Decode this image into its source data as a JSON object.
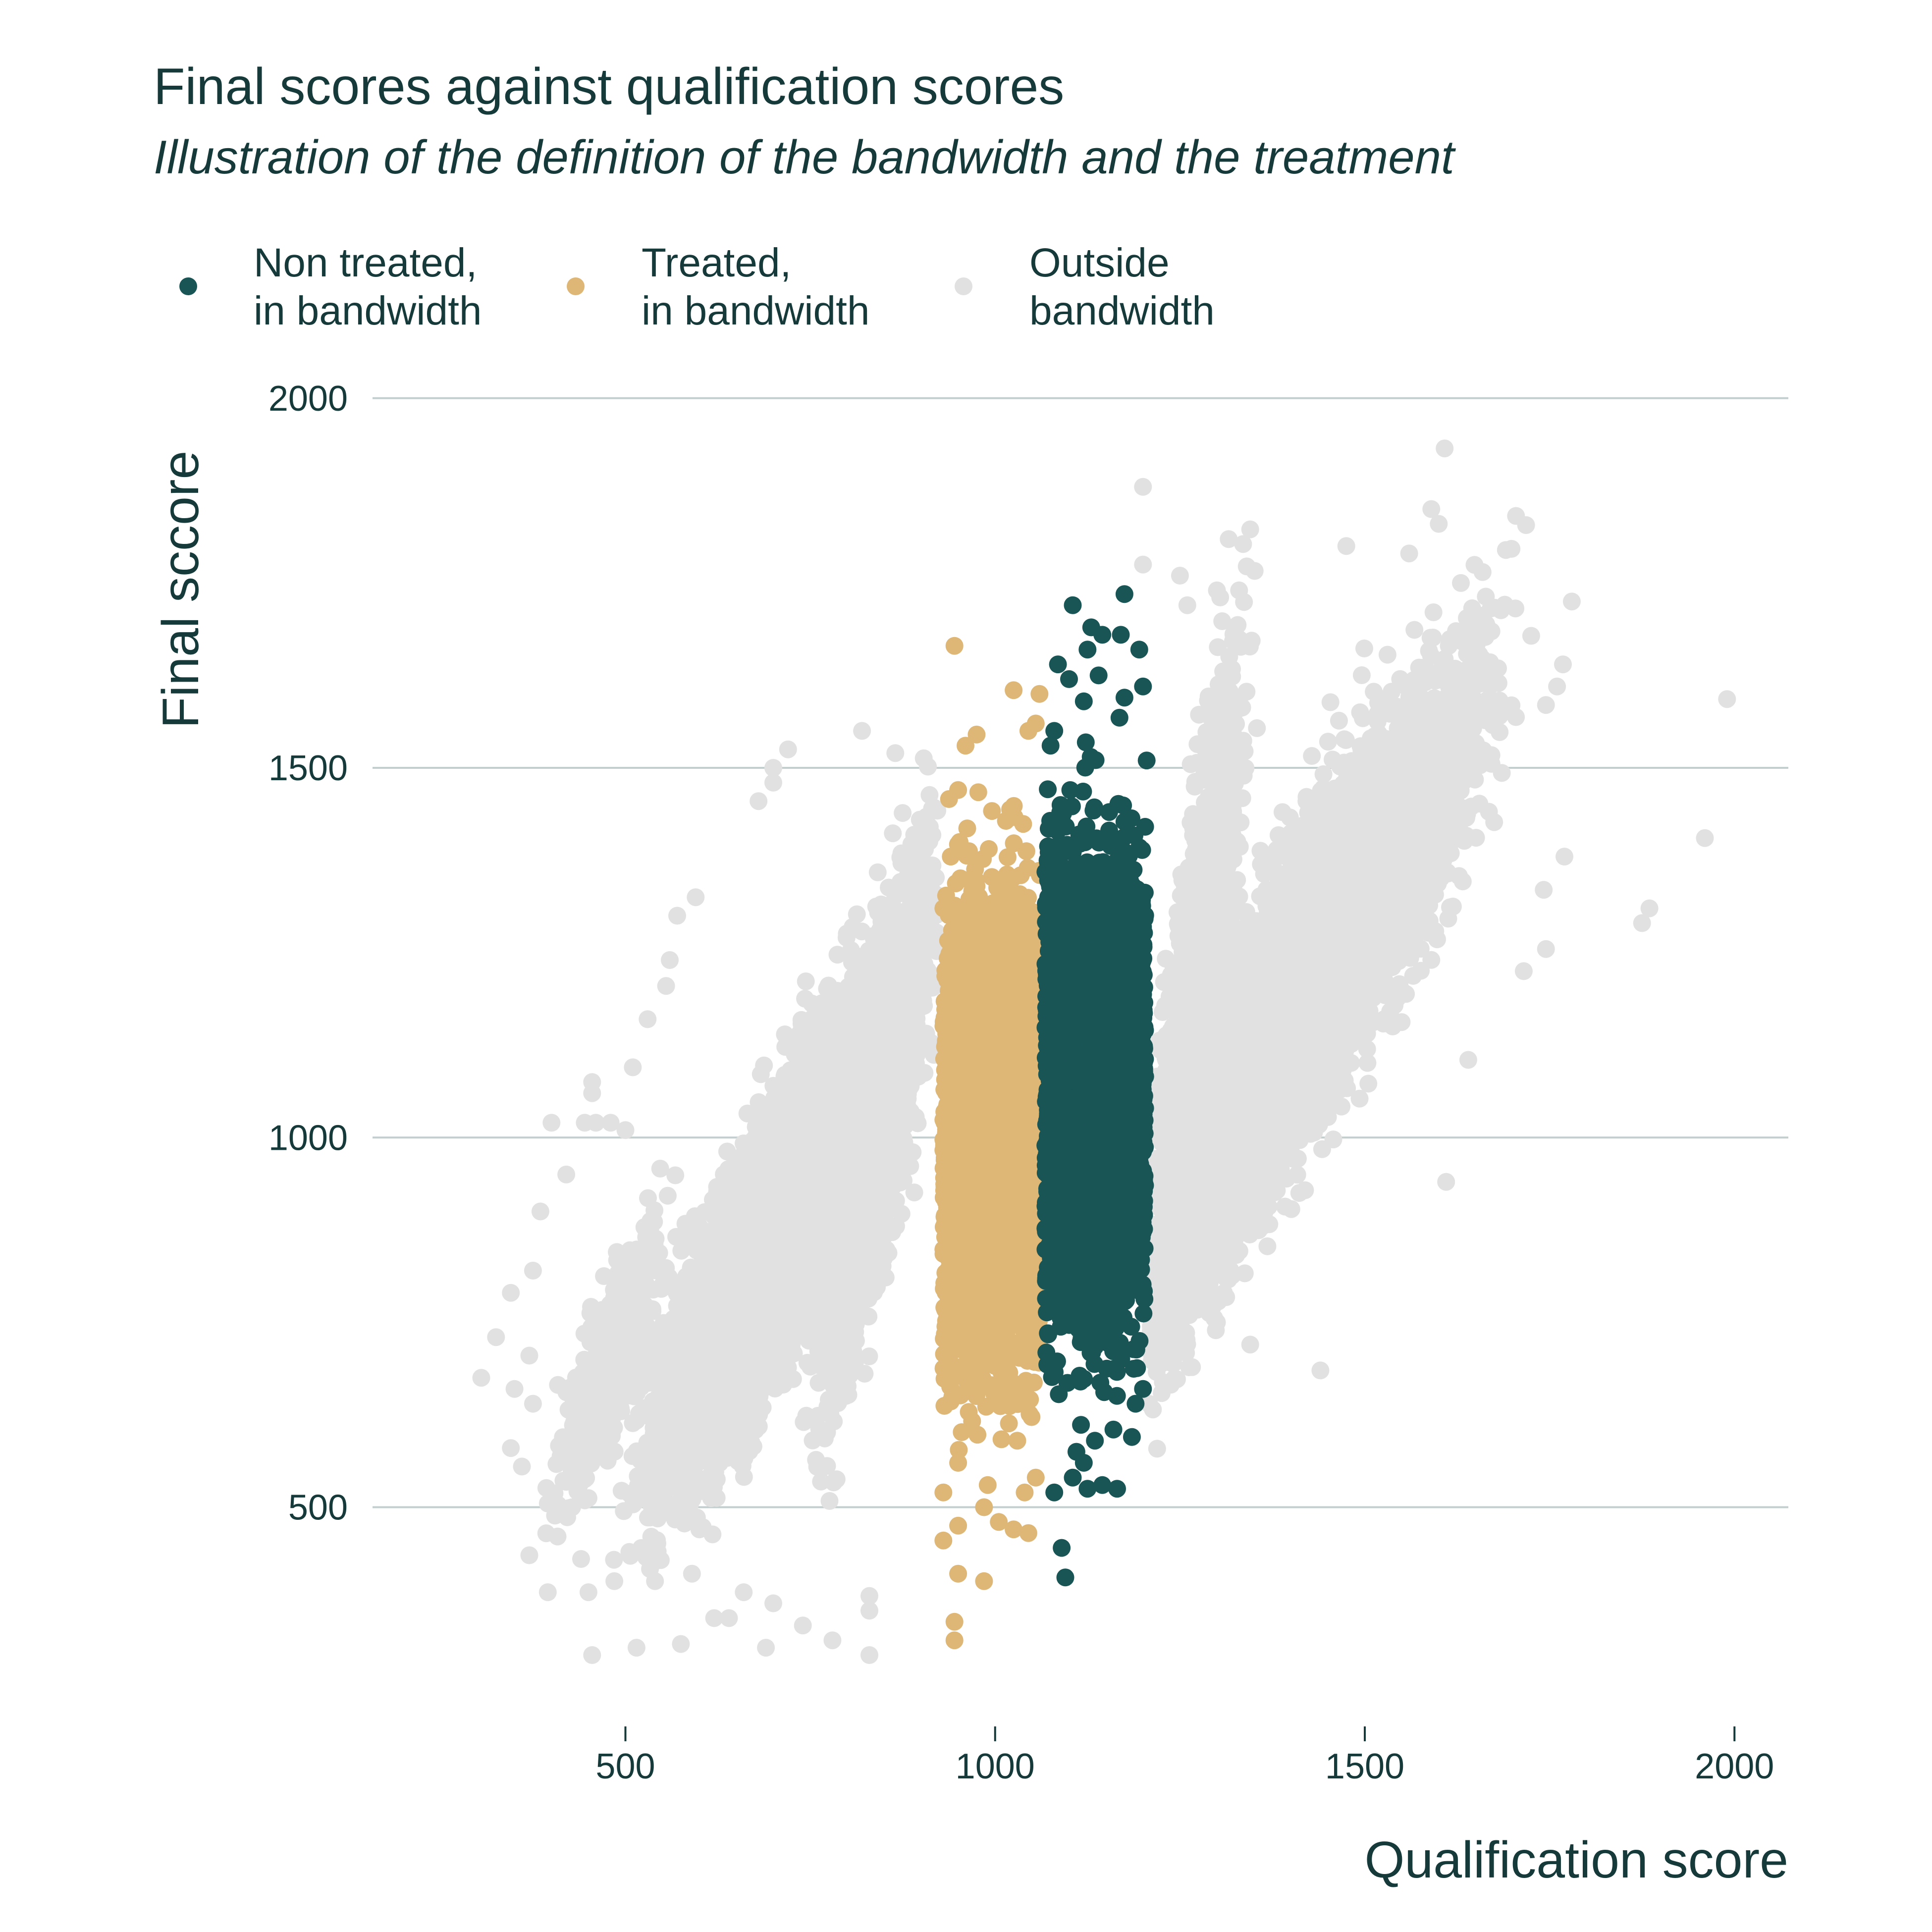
{
  "chart_data": {
    "type": "scatter",
    "title": "Final scores against qualification scores",
    "subtitle": "Illustration of the definition of the bandwidth and the treatment",
    "xlabel": "Qualification score",
    "ylabel": "Final sccore",
    "xlim": [
      200,
      2070
    ],
    "ylim": [
      290,
      2000
    ],
    "x_ticks": [
      500,
      1000,
      1500,
      2000
    ],
    "y_ticks": [
      500,
      1000,
      1500,
      2000
    ],
    "x_tick_labels": [
      "500",
      "1000",
      "1500",
      "2000"
    ],
    "y_tick_labels": [
      "500",
      "1000",
      "1500",
      "2000"
    ],
    "grid": "horizontal-major",
    "legend_position": "top-left",
    "legend": [
      {
        "id": "non_treated",
        "line1": "Non treated,",
        "line2": "in bandwidth",
        "color": "#1a5556"
      },
      {
        "id": "treated",
        "line1": "Treated,",
        "line2": "in bandwidth",
        "color": "#deb776"
      },
      {
        "id": "outside",
        "line1": "Outside",
        "line2": "bandwidth",
        "color": "#e1e1e1"
      }
    ],
    "bandwidth": {
      "lower": 925,
      "cutoff": 1065,
      "upper": 1205
    },
    "point_count_estimate": 20000,
    "series": [
      {
        "id": "outside",
        "color": "#e1e1e1",
        "points": [
          [
            1990,
            1593
          ],
          [
            1960,
            1405
          ],
          [
            1885,
            1310
          ],
          [
            1875,
            1290
          ],
          [
            1780,
            1725
          ],
          [
            1768,
            1640
          ],
          [
            1760,
            1610
          ],
          [
            1745,
            1585
          ],
          [
            1770,
            1380
          ],
          [
            1742,
            1335
          ],
          [
            1745,
            1255
          ],
          [
            1715,
            1225
          ],
          [
            1608,
            1932
          ],
          [
            1600,
            1830
          ],
          [
            1590,
            1850
          ],
          [
            1630,
            1750
          ],
          [
            1560,
            1790
          ],
          [
            1475,
            1800
          ],
          [
            1555,
            1360
          ],
          [
            1640,
            1105
          ],
          [
            1610,
            940
          ],
          [
            1440,
            685
          ],
          [
            1300,
            750
          ],
          [
            1345,
            720
          ],
          [
            1200,
            1880
          ],
          [
            1200,
            1775
          ],
          [
            1250,
            1760
          ],
          [
            1300,
            1740
          ],
          [
            1260,
            1720
          ],
          [
            1330,
            1740
          ],
          [
            720,
            1525
          ],
          [
            820,
            1550
          ],
          [
            865,
            1520
          ],
          [
            700,
            1500
          ],
          [
            700,
            1480
          ],
          [
            680,
            1455
          ],
          [
            595,
            1325
          ],
          [
            570,
            1300
          ],
          [
            560,
            1240
          ],
          [
            555,
            1205
          ],
          [
            530,
            1160
          ],
          [
            510,
            1095
          ],
          [
            455,
            1075
          ],
          [
            455,
            1060
          ],
          [
            445,
            1020
          ],
          [
            460,
            1020
          ],
          [
            480,
            1020
          ],
          [
            500,
            1010
          ],
          [
            400,
            1020
          ],
          [
            420,
            950
          ],
          [
            385,
            900
          ],
          [
            375,
            820
          ],
          [
            345,
            790
          ],
          [
            325,
            730
          ],
          [
            370,
            705
          ],
          [
            305,
            675
          ],
          [
            350,
            660
          ],
          [
            375,
            640
          ],
          [
            440,
            640
          ],
          [
            345,
            580
          ],
          [
            360,
            555
          ],
          [
            395,
            505
          ],
          [
            440,
            430
          ],
          [
            370,
            435
          ],
          [
            395,
            385
          ],
          [
            450,
            385
          ],
          [
            485,
            400
          ],
          [
            455,
            300
          ],
          [
            515,
            310
          ],
          [
            575,
            315
          ],
          [
            620,
            350
          ],
          [
            640,
            350
          ],
          [
            690,
            310
          ],
          [
            740,
            340
          ],
          [
            780,
            320
          ],
          [
            830,
            360
          ],
          [
            830,
            380
          ],
          [
            830,
            300
          ],
          [
            700,
            370
          ],
          [
            660,
            385
          ],
          [
            590,
            410
          ],
          [
            540,
            400
          ],
          [
            520,
            440
          ],
          [
            600,
            470
          ]
        ],
        "clouds": [
          {
            "x": [
              570,
              900
            ],
            "y": [
              560,
              1280
            ],
            "count": 3400
          },
          {
            "x": [
              500,
              760
            ],
            "y": [
              480,
              1050
            ],
            "count": 1600
          },
          {
            "x": [
              750,
              930
            ],
            "y": [
              620,
              1450
            ],
            "count": 1500
          },
          {
            "x": [
              1200,
              1560
            ],
            "y": [
              760,
              1540
            ],
            "count": 3400
          },
          {
            "x": [
              1350,
              1700
            ],
            "y": [
              1000,
              1720
            ],
            "count": 1700
          },
          {
            "x": [
              1205,
              1340
            ],
            "y": [
              700,
              1700
            ],
            "count": 1400
          },
          {
            "x": [
              400,
              560
            ],
            "y": [
              500,
              900
            ],
            "count": 500
          },
          {
            "x": [
              950,
              1200
            ],
            "y": [
              900,
              1300
            ],
            "count": 0
          }
        ]
      },
      {
        "id": "treated",
        "color": "#deb776",
        "points": [
          [
            945,
            1665
          ],
          [
            1025,
            1605
          ],
          [
            1060,
            1600
          ],
          [
            1055,
            1560
          ],
          [
            975,
            1545
          ],
          [
            1045,
            1550
          ],
          [
            960,
            1530
          ],
          [
            950,
            1470
          ],
          [
            940,
            1380
          ],
          [
            930,
            1310
          ],
          [
            950,
            475
          ],
          [
            930,
            455
          ],
          [
            950,
            410
          ],
          [
            985,
            400
          ],
          [
            945,
            345
          ],
          [
            945,
            320
          ],
          [
            1045,
            465
          ],
          [
            1040,
            520
          ],
          [
            990,
            530
          ],
          [
            1005,
            480
          ],
          [
            985,
            500
          ],
          [
            1025,
            470
          ],
          [
            1055,
            540
          ],
          [
            1030,
            590
          ],
          [
            950,
            560
          ],
          [
            930,
            520
          ]
        ],
        "clouds": [
          {
            "x": [
              930,
              1062
            ],
            "y": [
              540,
              1470
            ],
            "count": 2800
          }
        ]
      },
      {
        "id": "non_treated",
        "color": "#1a5556",
        "points": [
          [
            1175,
            1735
          ],
          [
            1105,
            1720
          ],
          [
            1130,
            1690
          ],
          [
            1145,
            1680
          ],
          [
            1170,
            1680
          ],
          [
            1125,
            1660
          ],
          [
            1195,
            1660
          ],
          [
            1085,
            1640
          ],
          [
            1140,
            1625
          ],
          [
            1100,
            1620
          ],
          [
            1200,
            1610
          ],
          [
            1175,
            1595
          ],
          [
            1120,
            1590
          ],
          [
            1080,
            1550
          ],
          [
            1075,
            1530
          ],
          [
            1205,
            1510
          ],
          [
            1090,
            445
          ],
          [
            1095,
            405
          ],
          [
            1080,
            520
          ],
          [
            1125,
            525
          ],
          [
            1145,
            530
          ],
          [
            1165,
            525
          ],
          [
            1105,
            540
          ],
          [
            1120,
            560
          ],
          [
            1135,
            590
          ],
          [
            1185,
            595
          ],
          [
            1160,
            605
          ],
          [
            1190,
            640
          ],
          [
            1200,
            660
          ],
          [
            1110,
            575
          ]
        ],
        "clouds": [
          {
            "x": [
              1068,
              1203
            ],
            "y": [
              590,
              1560
            ],
            "count": 2800
          }
        ]
      }
    ]
  }
}
